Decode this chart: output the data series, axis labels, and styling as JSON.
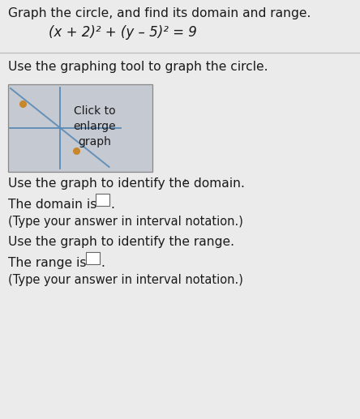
{
  "title": "Graph the circle, and find its domain and range.",
  "equation": "(x + 2)² + (y – 5)² = 9",
  "instruction1": "Use the graphing tool to graph the circle.",
  "graph_box_text": "Click to\nenlarge\ngraph",
  "instruction2": "Use the graph to identify the domain.",
  "domain_label": "The domain is",
  "domain_hint": "(Type your answer in interval notation.)",
  "instruction3": "Use the graph to identify the range.",
  "range_label": "The range is",
  "range_hint": "(Type your answer in interval notation.)",
  "page_bg": "#ebebeb",
  "graph_bg": "#c5c9d2",
  "text_color": "#1a1a1a",
  "axis_color": "#5b8ab5",
  "dot_color": "#c8872a",
  "divider_color": "#bbbbbb",
  "box_edge_color": "#888888"
}
